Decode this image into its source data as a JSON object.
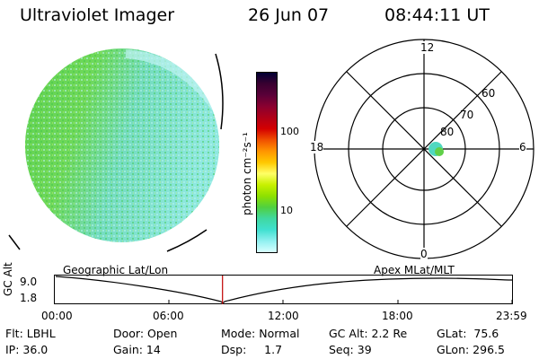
{
  "header": {
    "instrument": "Ultraviolet Imager",
    "date": "26 Jun 07",
    "time": "08:44:11 UT"
  },
  "colorbar": {
    "unit_label": "photon cm⁻²s⁻¹",
    "ticks": [
      "100",
      "10"
    ],
    "colors": [
      "#000033",
      "#3a0030",
      "#5a0038",
      "#8a0030",
      "#b00018",
      "#d40000",
      "#f05000",
      "#ff9500",
      "#ffc800",
      "#ffff66",
      "#c8f000",
      "#8ee000",
      "#50d040",
      "#40d8a0",
      "#40e0d0",
      "#90f0f0",
      "#d8ffff"
    ]
  },
  "polar_plot": {
    "hour_labels": {
      "top": "12",
      "left": "18",
      "right": "6",
      "bottom": "0"
    },
    "lat_labels": [
      "60",
      "70",
      "80"
    ]
  },
  "timeline": {
    "left_label": "Geographic Lat/Lon",
    "right_label": "Apex MLat/MLT",
    "axis_title": "GC Alt",
    "y_max": "9.0",
    "y_min": "1.8",
    "time_ticks": [
      "00:00",
      "06:00",
      "12:00",
      "18:00",
      "23:59"
    ],
    "current_time_fraction": 0.3668
  },
  "status": {
    "row1": [
      "Flt: LBHL",
      "Door: Open",
      "Mode: Normal",
      "GC Alt: 2.2 Re",
      "GLat:  75.6"
    ],
    "row2": [
      "IP: 36.0",
      "Gain: 14",
      "Dsp:     1.7",
      "Seq: 39",
      "GLon: 296.5"
    ]
  }
}
